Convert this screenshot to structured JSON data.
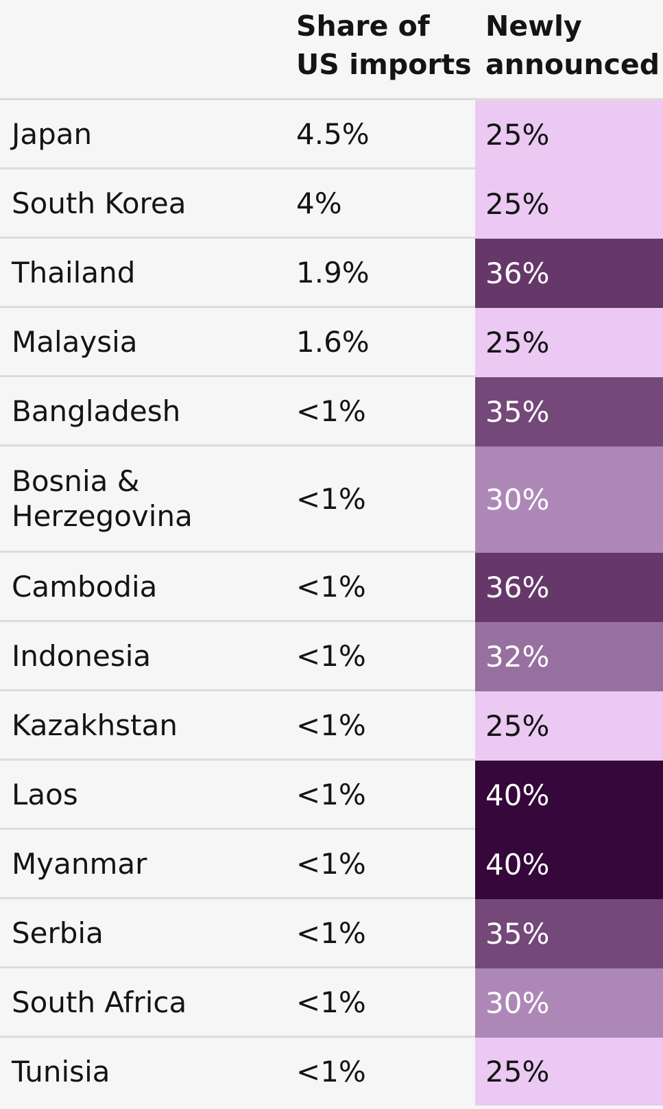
{
  "chart_data": {
    "type": "table",
    "columns": [
      "",
      "Share of US imports",
      "Newly announced"
    ],
    "rows": [
      {
        "country": "Japan",
        "share": "4.5%",
        "rate": "25%",
        "rate_value": 25
      },
      {
        "country": "South Korea",
        "share": "4%",
        "rate": "25%",
        "rate_value": 25
      },
      {
        "country": "Thailand",
        "share": "1.9%",
        "rate": "36%",
        "rate_value": 36
      },
      {
        "country": "Malaysia",
        "share": "1.6%",
        "rate": "25%",
        "rate_value": 25
      },
      {
        "country": "Bangladesh",
        "share": "<1%",
        "rate": "35%",
        "rate_value": 35
      },
      {
        "country": "Bosnia & Herzegovina",
        "share": "<1%",
        "rate": "30%",
        "rate_value": 30
      },
      {
        "country": "Cambodia",
        "share": "<1%",
        "rate": "36%",
        "rate_value": 36
      },
      {
        "country": "Indonesia",
        "share": "<1%",
        "rate": "32%",
        "rate_value": 32
      },
      {
        "country": "Kazakhstan",
        "share": "<1%",
        "rate": "25%",
        "rate_value": 25
      },
      {
        "country": "Laos",
        "share": "<1%",
        "rate": "40%",
        "rate_value": 40
      },
      {
        "country": "Myanmar",
        "share": "<1%",
        "rate": "40%",
        "rate_value": 40
      },
      {
        "country": "Serbia",
        "share": "<1%",
        "rate": "35%",
        "rate_value": 35
      },
      {
        "country": "South Africa",
        "share": "<1%",
        "rate": "30%",
        "rate_value": 30
      },
      {
        "country": "Tunisia",
        "share": "<1%",
        "rate": "25%",
        "rate_value": 25
      }
    ],
    "rate_colors": {
      "25": "#ebc9f3",
      "30": "#ad88b7",
      "32": "#96709f",
      "35": "#744878",
      "36": "#66386a",
      "40": "#35073a"
    },
    "rate_text_colors": {
      "25": "#141414",
      "30": "#ffffff",
      "32": "#ffffff",
      "35": "#ffffff",
      "36": "#ffffff",
      "40": "#ffffff"
    }
  }
}
